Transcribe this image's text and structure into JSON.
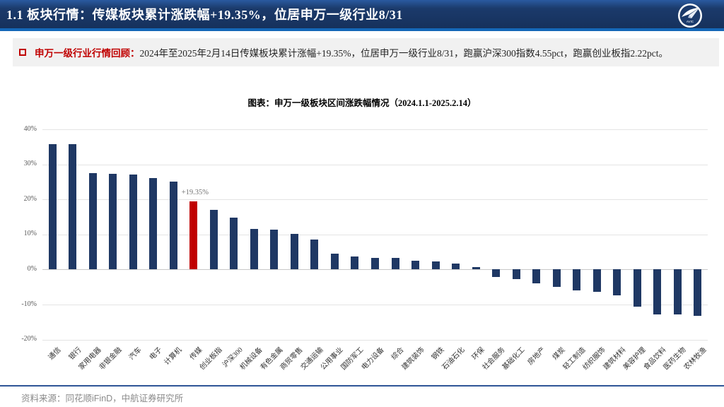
{
  "header": {
    "title": "1.1 板块行情：传媒板块累计涨跌幅+19.35%，位居申万一级行业8/31",
    "logo_text": "AVIC"
  },
  "summary": {
    "label": "申万一级行业行情回顾：",
    "text": "2024年至2025年2月14日传媒板块累计涨幅+19.35%，位居申万一级行业8/31，跑赢沪深300指数4.55pct，跑赢创业板指2.22pct。"
  },
  "chart_data": {
    "type": "bar",
    "title": "图表：申万一级板块区间涨跌幅情况（2024.1.1-2025.2.14）",
    "categories": [
      "通信",
      "银行",
      "家用电器",
      "非银金融",
      "汽车",
      "电子",
      "计算机",
      "传媒",
      "创业板指",
      "沪深300",
      "机械设备",
      "有色金属",
      "商贸零售",
      "交通运输",
      "公用事业",
      "国防军工",
      "电力设备",
      "综合",
      "建筑装饰",
      "钢铁",
      "石油石化",
      "环保",
      "社会服务",
      "基础化工",
      "房地产",
      "煤炭",
      "轻工制造",
      "纺织服饰",
      "建筑材料",
      "美容护理",
      "食品饮料",
      "医药生物",
      "农林牧渔"
    ],
    "values": [
      35.8,
      35.7,
      27.6,
      27.3,
      27.1,
      26.0,
      25.1,
      19.35,
      17.1,
      14.8,
      11.6,
      11.4,
      10.2,
      8.5,
      4.5,
      3.7,
      3.4,
      3.3,
      2.5,
      2.3,
      1.6,
      0.6,
      -2.2,
      -2.8,
      -4.0,
      -5.0,
      -5.9,
      -6.3,
      -7.4,
      -10.7,
      -12.8,
      -12.9,
      -13.2
    ],
    "highlight": {
      "category": "传媒",
      "index": 7,
      "label": "+19.35%",
      "color": "#c00000"
    },
    "bar_color": "#1f3864",
    "y_ticks": [
      "40%",
      "30%",
      "20%",
      "10%",
      "0%",
      "-10%",
      "-20%"
    ],
    "ylim": [
      -20,
      40
    ],
    "ylabel": "",
    "xlabel": "",
    "grid": true,
    "legend": "none",
    "unit": "%"
  },
  "footer": {
    "source": "资料来源：同花顺iFinD，中航证券研究所"
  },
  "colors": {
    "header_navy": "#1b3a6b",
    "header_accent_blue": "#1468b8",
    "band_gray": "#f1f1f1",
    "accent_red": "#c00000",
    "bar_navy": "#1f3864",
    "footer_blue": "#2f5597"
  }
}
